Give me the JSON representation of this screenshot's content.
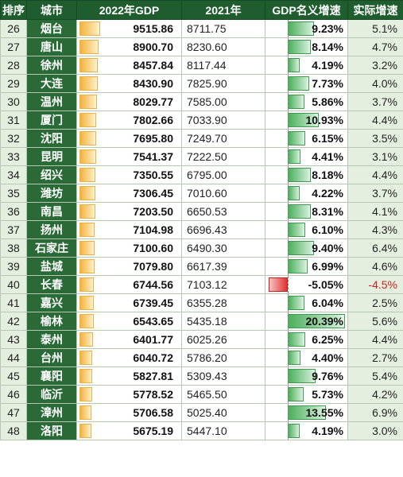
{
  "headers": {
    "rank": "排序",
    "city": "城市",
    "gdp2022": "2022年GDP",
    "gdp2021": "2021年",
    "nominal": "GDP名义增速",
    "real": "实际增速"
  },
  "colors": {
    "header_bg": "#1f5c2e",
    "city_bg": "#2a6a37",
    "gdp_bar": "#f2b33d",
    "positive_bar": "#4caf5c",
    "negative_bar": "#e23232",
    "negative_text": "#d02020"
  },
  "chart_data": {
    "type": "table",
    "columns": [
      "排序",
      "城市",
      "2022年GDP",
      "2021年",
      "GDP名义增速",
      "实际增速"
    ],
    "rows": [
      {
        "rank": "26",
        "city": "烟台",
        "gdp2022": "9515.86",
        "gdp2021": "8711.75",
        "nominal": "9.23%",
        "real": "5.1%"
      },
      {
        "rank": "27",
        "city": "唐山",
        "gdp2022": "8900.70",
        "gdp2021": "8230.60",
        "nominal": "8.14%",
        "real": "4.7%"
      },
      {
        "rank": "28",
        "city": "徐州",
        "gdp2022": "8457.84",
        "gdp2021": "8117.44",
        "nominal": "4.19%",
        "real": "3.2%"
      },
      {
        "rank": "29",
        "city": "大连",
        "gdp2022": "8430.90",
        "gdp2021": "7825.90",
        "nominal": "7.73%",
        "real": "4.0%"
      },
      {
        "rank": "30",
        "city": "温州",
        "gdp2022": "8029.77",
        "gdp2021": "7585.00",
        "nominal": "5.86%",
        "real": "3.7%"
      },
      {
        "rank": "31",
        "city": "厦门",
        "gdp2022": "7802.66",
        "gdp2021": "7033.90",
        "nominal": "10.93%",
        "real": "4.4%"
      },
      {
        "rank": "32",
        "city": "沈阳",
        "gdp2022": "7695.80",
        "gdp2021": "7249.70",
        "nominal": "6.15%",
        "real": "3.5%"
      },
      {
        "rank": "33",
        "city": "昆明",
        "gdp2022": "7541.37",
        "gdp2021": "7222.50",
        "nominal": "4.41%",
        "real": "3.1%"
      },
      {
        "rank": "34",
        "city": "绍兴",
        "gdp2022": "7350.55",
        "gdp2021": "6795.00",
        "nominal": "8.18%",
        "real": "4.4%"
      },
      {
        "rank": "35",
        "city": "潍坊",
        "gdp2022": "7306.45",
        "gdp2021": "7010.60",
        "nominal": "4.22%",
        "real": "3.7%"
      },
      {
        "rank": "36",
        "city": "南昌",
        "gdp2022": "7203.50",
        "gdp2021": "6650.53",
        "nominal": "8.31%",
        "real": "4.1%"
      },
      {
        "rank": "37",
        "city": "扬州",
        "gdp2022": "7104.98",
        "gdp2021": "6696.43",
        "nominal": "6.10%",
        "real": "4.3%"
      },
      {
        "rank": "38",
        "city": "石家庄",
        "gdp2022": "7100.60",
        "gdp2021": "6490.30",
        "nominal": "9.40%",
        "real": "6.4%"
      },
      {
        "rank": "39",
        "city": "盐城",
        "gdp2022": "7079.80",
        "gdp2021": "6617.39",
        "nominal": "6.99%",
        "real": "4.6%"
      },
      {
        "rank": "40",
        "city": "长春",
        "gdp2022": "6744.56",
        "gdp2021": "7103.12",
        "nominal": "-5.05%",
        "real": "-4.5%"
      },
      {
        "rank": "41",
        "city": "嘉兴",
        "gdp2022": "6739.45",
        "gdp2021": "6355.28",
        "nominal": "6.04%",
        "real": "2.5%"
      },
      {
        "rank": "42",
        "city": "榆林",
        "gdp2022": "6543.65",
        "gdp2021": "5435.18",
        "nominal": "20.39%",
        "real": "5.6%"
      },
      {
        "rank": "43",
        "city": "泰州",
        "gdp2022": "6401.77",
        "gdp2021": "6025.26",
        "nominal": "6.25%",
        "real": "4.4%"
      },
      {
        "rank": "44",
        "city": "台州",
        "gdp2022": "6040.72",
        "gdp2021": "5786.20",
        "nominal": "4.40%",
        "real": "2.7%"
      },
      {
        "rank": "45",
        "city": "襄阳",
        "gdp2022": "5827.81",
        "gdp2021": "5309.43",
        "nominal": "9.76%",
        "real": "5.4%"
      },
      {
        "rank": "46",
        "city": "临沂",
        "gdp2022": "5778.52",
        "gdp2021": "5465.50",
        "nominal": "5.73%",
        "real": "4.2%"
      },
      {
        "rank": "47",
        "city": "漳州",
        "gdp2022": "5706.58",
        "gdp2021": "5025.40",
        "nominal": "13.55%",
        "real": "6.9%"
      },
      {
        "rank": "48",
        "city": "洛阳",
        "gdp2022": "5675.19",
        "gdp2021": "5447.10",
        "nominal": "4.19%",
        "real": "3.0%"
      }
    ]
  }
}
